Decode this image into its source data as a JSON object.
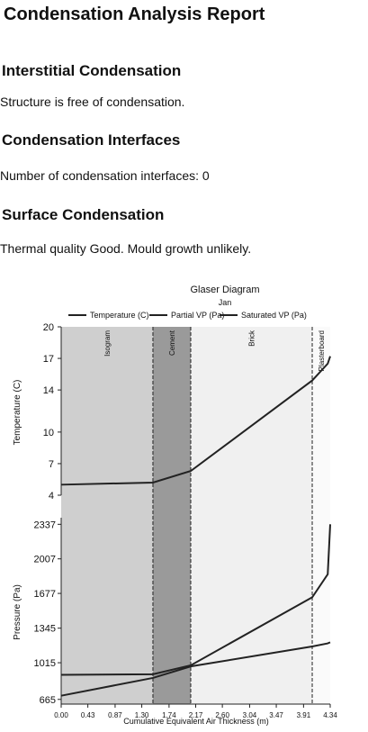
{
  "report": {
    "title": "Condensation Analysis Report",
    "sections": [
      {
        "heading": "Interstitial Condensation",
        "text": "Structure is free of condensation."
      },
      {
        "heading": "Condensation Interfaces",
        "text": "Number of condensation interfaces: 0"
      },
      {
        "heading": "Surface Condensation",
        "text": "Thermal quality Good. Mould growth unlikely."
      }
    ]
  },
  "chart_data": {
    "type": "line",
    "title": "Glaser Diagram",
    "subtitle": "Jan",
    "xlabel": "Cumulative Equivalent Air Thickness (m)",
    "ylabel": "Temperature (C)",
    "y2label": "Pressure (Pa)",
    "xlim": [
      0,
      4.34
    ],
    "xticks": [
      {
        "value": 0,
        "label": "0.00"
      },
      0.43,
      0.87,
      {
        "value": 1.3,
        "label": "1.30"
      },
      1.74,
      2.17,
      {
        "value": 2.6,
        "label": "2.60"
      },
      3.04,
      3.47,
      3.91,
      4.34
    ],
    "ylim": [
      4,
      20
    ],
    "yticks": [
      4,
      7,
      10,
      14,
      17,
      20
    ],
    "y2lim": [
      620,
      2400
    ],
    "y2ticks": [
      665,
      1015,
      1345,
      1677,
      2007,
      2337
    ],
    "layers": [
      {
        "name": "Isogram",
        "color": "#cfcfcf",
        "x": [
          0,
          1.48
        ]
      },
      {
        "name": "Cement",
        "color": "#9a9a9a",
        "x": [
          1.48,
          2.09
        ]
      },
      {
        "name": "Brick",
        "color": "#f0f0f0",
        "x": [
          2.09,
          4.05
        ]
      },
      {
        "name": "Plasterboard",
        "color": "#fafafa",
        "x": [
          4.05,
          4.34
        ]
      }
    ],
    "x": [
      0,
      1.48,
      2.09,
      4.05,
      4.3,
      4.34
    ],
    "series": [
      {
        "name": "Temperature (C)",
        "color": "#222222",
        "values": [
          5,
          5.2,
          6.3,
          14.9,
          16.5,
          17.2
        ]
      },
      {
        "name": "Partial VP (Pa)",
        "color": "#222222",
        "axis": "y2",
        "values": [
          700,
          870,
          980,
          1170,
          1200,
          1210
        ]
      },
      {
        "name": "Saturated VP (Pa)",
        "color": "#222222",
        "axis": "y2",
        "values": [
          900,
          905,
          990,
          1640,
          1860,
          2337
        ]
      }
    ]
  }
}
